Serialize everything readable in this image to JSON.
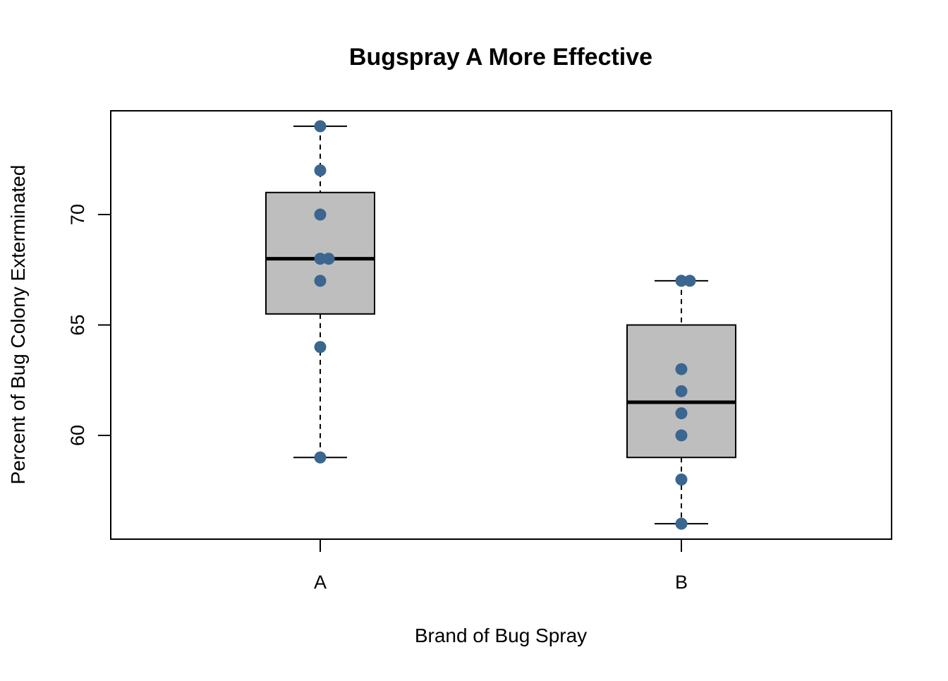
{
  "chart_data": {
    "type": "boxplot",
    "title": "Bugspray A More Effective",
    "xlabel": "Brand of Bug Spray",
    "ylabel": "Percent of Bug Colony Exterminated",
    "ylim": [
      55.3,
      74.7
    ],
    "y_ticks": [
      60,
      65,
      70
    ],
    "y_tick_labels": [
      "60",
      "65",
      "70"
    ],
    "categories": [
      "A",
      "B"
    ],
    "boxes": [
      {
        "category": "A",
        "whisker_low": 59,
        "q1": 65.5,
        "median": 68,
        "q3": 71,
        "whisker_high": 74
      },
      {
        "category": "B",
        "whisker_low": 56,
        "q1": 59,
        "median": 61.5,
        "q3": 65,
        "whisker_high": 67
      }
    ],
    "points": [
      {
        "category": "A",
        "values": [
          59,
          64,
          67,
          68,
          68,
          70,
          72,
          74
        ]
      },
      {
        "category": "B",
        "values": [
          56,
          58,
          60,
          61,
          62,
          63,
          67,
          67
        ]
      }
    ],
    "colors": {
      "box_fill": "#bebebe",
      "box_border": "#000000",
      "median": "#000000",
      "points": "#3a668f"
    },
    "grid": false,
    "legend": "none"
  }
}
